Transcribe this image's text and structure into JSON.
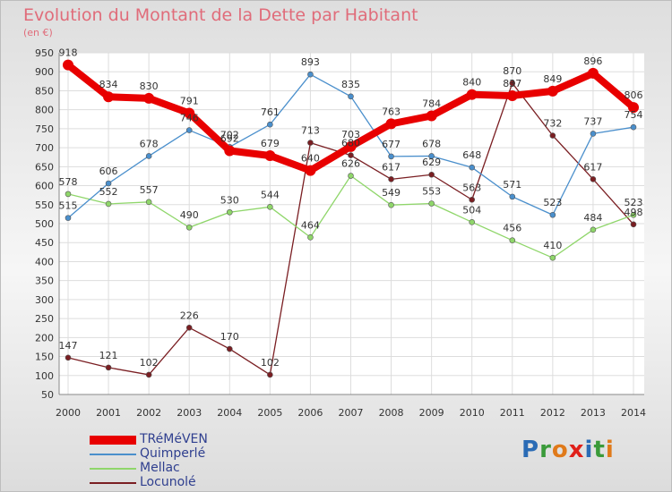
{
  "title": "Evolution du Montant de la Dette par Habitant",
  "subtitle": "(en €)",
  "logo": {
    "text": "Proxiti",
    "letters": [
      "P",
      "r",
      "o",
      "x",
      "i",
      "t",
      "i"
    ],
    "colors": [
      "#2a6bb5",
      "#3a9a3a",
      "#e07a1a",
      "#e0201a",
      "#2a6bb5",
      "#3a9a3a",
      "#e07a1a"
    ]
  },
  "chart_data": {
    "type": "line",
    "title": "Evolution du Montant de la Dette par Habitant",
    "ylabel": "(en €)",
    "ylim": [
      50,
      950
    ],
    "yticks": [
      50,
      100,
      150,
      200,
      250,
      300,
      350,
      400,
      450,
      500,
      550,
      600,
      650,
      700,
      750,
      800,
      850,
      900,
      950
    ],
    "grid": true,
    "legend_position": "bottom-left",
    "x": [
      "2000",
      "2001",
      "2002",
      "2003",
      "2004",
      "2005",
      "2006",
      "2007",
      "2008",
      "2009",
      "2010",
      "2011",
      "2012",
      "2013",
      "2014"
    ],
    "series": [
      {
        "name": "TRéMéVEN",
        "color": "#e80000",
        "values": [
          918,
          834,
          830,
          791,
          692,
          679,
          640,
          703,
          763,
          784,
          840,
          837,
          849,
          896,
          806
        ]
      },
      {
        "name": "Quimperlé",
        "color": "#4a8fcc",
        "values": [
          515,
          606,
          678,
          746,
          702,
          761,
          893,
          835,
          677,
          678,
          648,
          571,
          523,
          737,
          754
        ]
      },
      {
        "name": "Mellac",
        "color": "#8fd66a",
        "values": [
          578,
          552,
          557,
          490,
          530,
          544,
          464,
          626,
          549,
          553,
          504,
          456,
          410,
          484,
          523
        ]
      },
      {
        "name": "Locunolé",
        "color": "#7a1e22",
        "values": [
          147,
          121,
          102,
          226,
          170,
          102,
          713,
          680,
          617,
          629,
          563,
          870,
          732,
          617,
          498
        ]
      }
    ]
  }
}
